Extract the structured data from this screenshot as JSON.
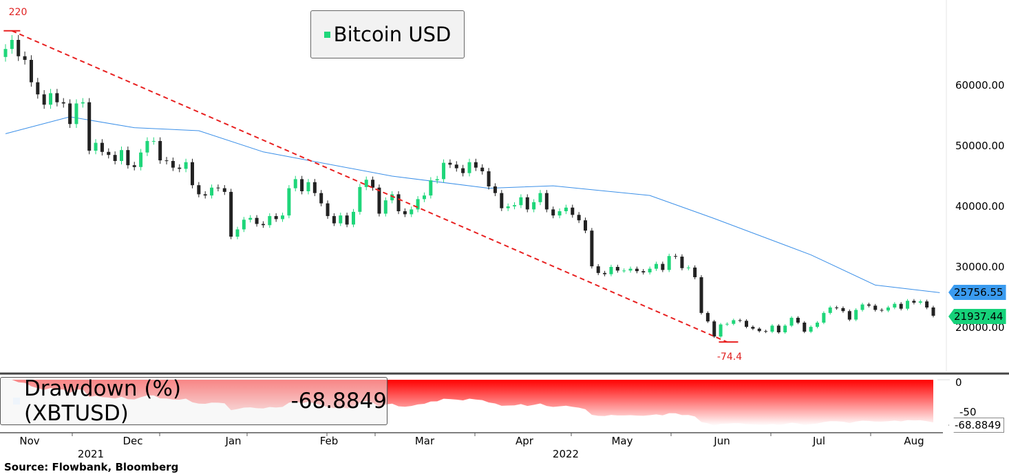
{
  "chart_data": {
    "type": "candlestick",
    "title": "Bitcoin USD",
    "start_date": "2021-11-08",
    "step_days": 2,
    "closes": [
      66000,
      67500,
      64800,
      64200,
      60500,
      58500,
      56800,
      58700,
      57200,
      57000,
      53600,
      57000,
      57200,
      49200,
      50500,
      49000,
      48500,
      47500,
      49300,
      46800,
      46500,
      48900,
      50800,
      50800,
      47600,
      47500,
      46400,
      46200,
      47300,
      43500,
      42000,
      41800,
      43100,
      43000,
      42400,
      35000,
      36200,
      37800,
      38100,
      37100,
      36900,
      38400,
      37900,
      38500,
      43000,
      44500,
      42500,
      44000,
      42200,
      40500,
      38400,
      37200,
      38500,
      37000,
      39100,
      43200,
      44400,
      43100,
      38800,
      41000,
      42000,
      39200,
      38700,
      39500,
      41200,
      41800,
      44300,
      44500,
      47200,
      46900,
      46300,
      45500,
      47300,
      46400,
      45800,
      43300,
      42200,
      39700,
      40000,
      40200,
      41500,
      39500,
      40700,
      42200,
      39500,
      38500,
      39200,
      39800,
      38600,
      37700,
      36000,
      30100,
      29000,
      28800,
      30000,
      29400,
      29400,
      29700,
      29300,
      29100,
      29700,
      30500,
      29500,
      31800,
      31700,
      29800,
      29900,
      28300,
      22400,
      21000,
      18500,
      20500,
      20600,
      21200,
      21100,
      20100,
      19800,
      19400,
      19300,
      20300,
      19200,
      20300,
      21600,
      20800,
      19300,
      20100,
      20800,
      22400,
      23300,
      23200,
      22700,
      21300,
      22900,
      23800,
      23600,
      22900,
      22800,
      23300,
      23900,
      23100,
      24400,
      24100,
      24300,
      23300,
      21937.44
    ],
    "moving_average": [
      [
        0,
        52000
      ],
      [
        10,
        54800
      ],
      [
        20,
        53000
      ],
      [
        30,
        52500
      ],
      [
        40,
        49000
      ],
      [
        60,
        45000
      ],
      [
        75,
        43000
      ],
      [
        85,
        43400
      ],
      [
        100,
        41800
      ],
      [
        110,
        38000
      ],
      [
        125,
        32000
      ],
      [
        135,
        27000
      ],
      [
        145,
        25756.55
      ]
    ],
    "ylim": [
      12727,
      74091
    ],
    "yticks": [
      "60000.00",
      "50000.00",
      "40000.00",
      "30000.00",
      "20000.00"
    ],
    "ytick_values": [
      60000,
      50000,
      40000,
      30000,
      20000
    ],
    "last_price": "21937.44",
    "ma_last": "25756.55",
    "trend_line": {
      "from_value": 69000,
      "from_index": 1,
      "to_value": 17600,
      "to_index": 112,
      "start_label": "220",
      "end_label": "-74.4"
    },
    "xticks": [
      "Nov",
      "Dec",
      "Jan",
      "Feb",
      "Mar",
      "Apr",
      "May",
      "Jun",
      "Jul",
      "Aug"
    ],
    "year_labels": [
      "2021",
      "2022"
    ],
    "drawdown": {
      "title": "Drawdown (%) (XBTUSD)",
      "value": "-68.8849",
      "yticks": [
        "0",
        "-50"
      ],
      "ylim": [
        -75,
        0
      ]
    },
    "colors": {
      "up": "#1fd67a",
      "down": "#222222",
      "ma": "#3a8fe8",
      "trend": "#e82020",
      "drawdown": "#ff0000"
    }
  },
  "source": "Source: Flowbank, Bloomberg"
}
